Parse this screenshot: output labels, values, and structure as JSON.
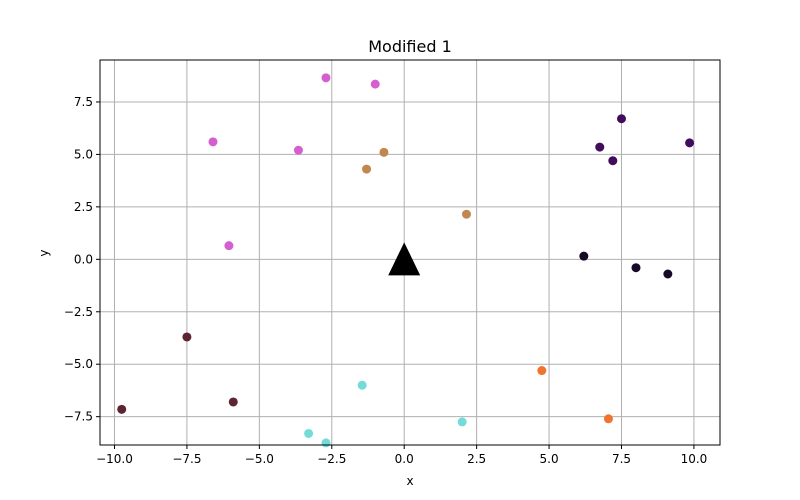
{
  "chart_data": {
    "type": "scatter",
    "title": "Modified 1",
    "xlabel": "x",
    "ylabel": "y",
    "xlim": [
      -10.5,
      10.9
    ],
    "ylim": [
      -8.85,
      9.5
    ],
    "xticks": [
      -10.0,
      -7.5,
      -5.0,
      -2.5,
      0.0,
      2.5,
      5.0,
      7.5,
      10.0
    ],
    "xtick_labels": [
      "−10.0",
      "−7.5",
      "−5.0",
      "−2.5",
      "0.0",
      "2.5",
      "5.0",
      "7.5",
      "10.0"
    ],
    "yticks": [
      -7.5,
      -5.0,
      -2.5,
      0.0,
      2.5,
      5.0,
      7.5
    ],
    "ytick_labels": [
      "−7.5",
      "−5.0",
      "−2.5",
      "0.0",
      "2.5",
      "5.0",
      "7.5"
    ],
    "grid": true,
    "marker": {
      "x": 0.0,
      "y": 0.0,
      "shape": "triangle",
      "color": "#000000"
    },
    "groups": [
      {
        "color": "#d65fd0",
        "points": [
          [
            -2.7,
            8.65
          ],
          [
            -1.0,
            8.35
          ],
          [
            -6.6,
            5.6
          ],
          [
            -3.65,
            5.2
          ],
          [
            -6.05,
            0.65
          ]
        ]
      },
      {
        "color": "#c0874f",
        "points": [
          [
            -0.7,
            5.1
          ],
          [
            -1.3,
            4.3
          ],
          [
            2.15,
            2.15
          ]
        ]
      },
      {
        "color": "#420b5c",
        "points": [
          [
            7.5,
            6.7
          ],
          [
            6.75,
            5.35
          ],
          [
            7.2,
            4.7
          ],
          [
            9.85,
            5.55
          ]
        ]
      },
      {
        "color": "#160a28",
        "points": [
          [
            6.2,
            0.15
          ],
          [
            8.0,
            -0.4
          ],
          [
            9.1,
            -0.7
          ]
        ]
      },
      {
        "color": "#5d2432",
        "points": [
          [
            -7.5,
            -3.7
          ],
          [
            -5.9,
            -6.8
          ],
          [
            -9.75,
            -7.15
          ]
        ]
      },
      {
        "color": "#f07430",
        "points": [
          [
            4.75,
            -5.3
          ],
          [
            7.05,
            -7.6
          ]
        ]
      },
      {
        "color": "#74dcd8",
        "points": [
          [
            -1.45,
            -6.0
          ],
          [
            2.0,
            -7.75
          ],
          [
            -3.3,
            -8.3
          ],
          [
            -2.7,
            -8.75
          ]
        ]
      }
    ]
  }
}
